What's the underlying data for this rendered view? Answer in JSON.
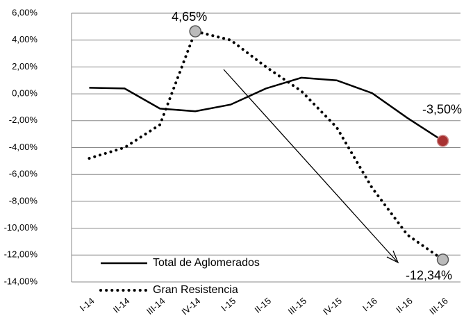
{
  "chart_data": {
    "type": "line",
    "categories": [
      "I-14",
      "II-14",
      "III-14",
      "IV-14",
      "I-15",
      "II-15",
      "III-15",
      "IV-15",
      "I-16",
      "II-16",
      "III-16"
    ],
    "series": [
      {
        "name": "Total de Aglomerados",
        "color": "#000000",
        "style": "solid",
        "values": [
          0.45,
          0.4,
          -1.1,
          -1.3,
          -0.8,
          0.4,
          1.2,
          1.0,
          0.05,
          -1.8,
          -3.5
        ],
        "value_labels": [
          null,
          null,
          null,
          null,
          null,
          null,
          null,
          null,
          null,
          null,
          "-3,50%"
        ]
      },
      {
        "name": "Gran Resistencia",
        "color": "#000000",
        "style": "dotted",
        "values": [
          -4.8,
          -4.0,
          -2.3,
          4.65,
          4.0,
          2.0,
          0.2,
          -2.5,
          -7.0,
          -10.5,
          -12.34
        ],
        "value_labels": [
          null,
          null,
          null,
          "4,65%",
          null,
          null,
          null,
          null,
          null,
          null,
          "-12,34%"
        ]
      }
    ],
    "ylim": [
      -14,
      6
    ],
    "yticks": [
      {
        "value": -14,
        "label": "-14,00%"
      },
      {
        "value": -12,
        "label": "-12,00%"
      },
      {
        "value": -10,
        "label": "-10,00%"
      },
      {
        "value": -8,
        "label": "-8,00%"
      },
      {
        "value": -6,
        "label": "-6,00%"
      },
      {
        "value": -4,
        "label": "-4,00%"
      },
      {
        "value": -2,
        "label": "-2,00%"
      },
      {
        "value": 0,
        "label": "0,00%"
      },
      {
        "value": 2,
        "label": "2,00%"
      },
      {
        "value": 4,
        "label": "4,00%"
      },
      {
        "value": 6,
        "label": "6,00%"
      }
    ],
    "grid": true
  }
}
